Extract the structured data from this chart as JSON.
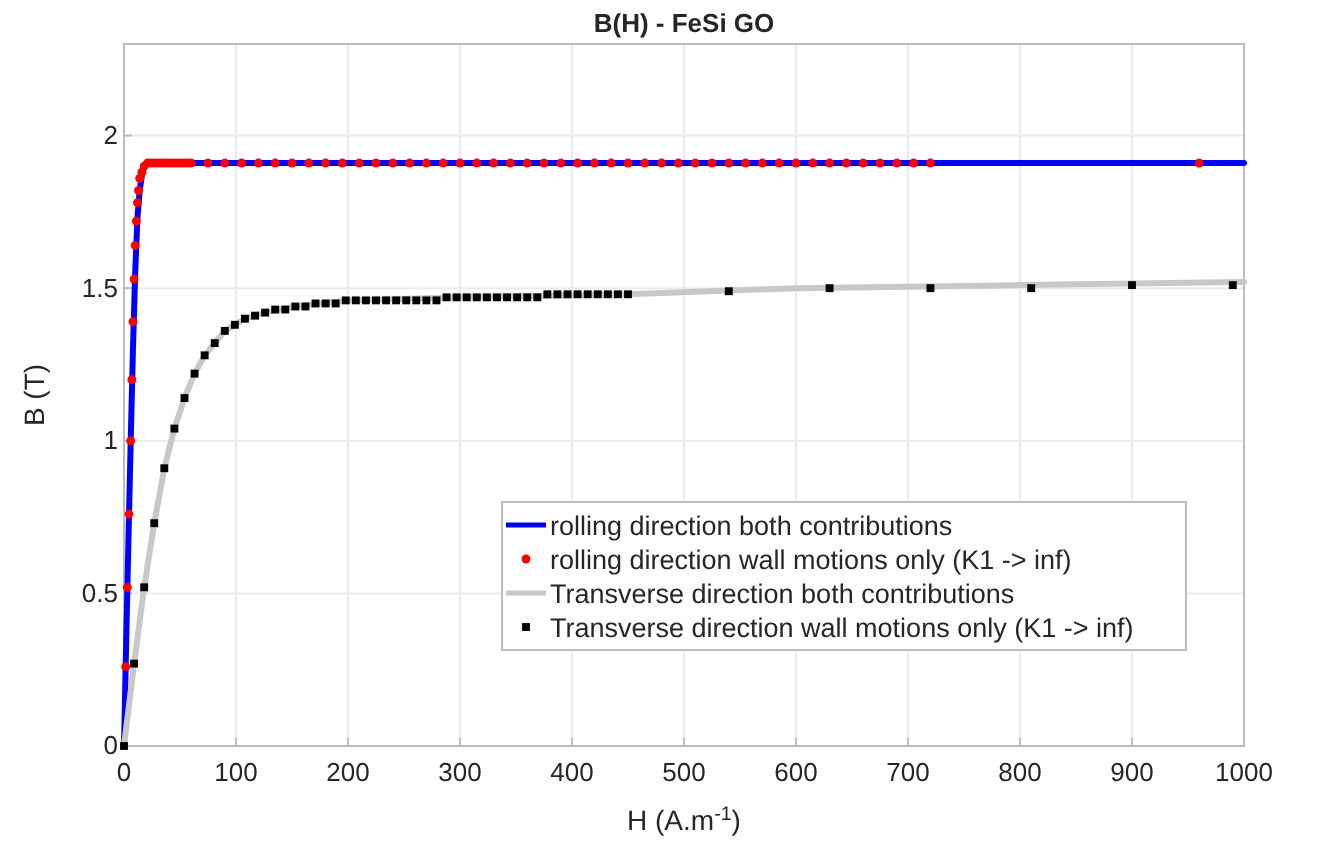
{
  "chart_data": {
    "type": "line",
    "title": "B(H) - FeSi GO",
    "xlabel": "H (A.m$^{-1}$)",
    "ylabel": "B (T)",
    "xlim": [
      0,
      1000
    ],
    "xticks": [
      0,
      100,
      200,
      300,
      400,
      500,
      600,
      700,
      800,
      900,
      1000
    ],
    "ylim": [
      0,
      2.3
    ],
    "yticks": [
      0,
      0.5,
      1,
      1.5,
      2
    ],
    "grid": true,
    "legend": "bottom right",
    "series": [
      {
        "name": "rolling direction both contributions",
        "color": "#0000ff",
        "marker": "none",
        "x": [
          0,
          2,
          4,
          6,
          8,
          10,
          12,
          14,
          16,
          18,
          21,
          30,
          1000
        ],
        "values": [
          0,
          0.35,
          0.68,
          1.0,
          1.3,
          1.55,
          1.73,
          1.82,
          1.87,
          1.9,
          1.91,
          1.91,
          1.91
        ]
      },
      {
        "name": "rolling direction wall motions only (K1 -> inf)",
        "type": "scatter",
        "color": "#ff0000",
        "marker": "circle",
        "x": [
          1.5,
          3,
          4.5,
          6,
          7,
          8,
          9,
          10,
          11,
          12,
          13,
          14,
          16,
          18,
          21,
          24,
          27,
          30,
          33,
          36,
          39,
          42,
          45,
          48,
          51,
          54,
          57,
          60,
          75,
          90,
          105,
          120,
          135,
          150,
          165,
          180,
          195,
          210,
          225,
          240,
          255,
          270,
          285,
          300,
          315,
          330,
          345,
          360,
          375,
          390,
          405,
          420,
          435,
          450,
          465,
          480,
          495,
          510,
          525,
          540,
          555,
          570,
          585,
          600,
          615,
          630,
          645,
          660,
          675,
          690,
          705,
          720,
          960
        ],
        "values": [
          0.26,
          0.52,
          0.76,
          1.0,
          1.2,
          1.39,
          1.53,
          1.64,
          1.72,
          1.78,
          1.82,
          1.86,
          1.88,
          1.9,
          1.91,
          1.91,
          1.91,
          1.91,
          1.91,
          1.91,
          1.91,
          1.91,
          1.91,
          1.91,
          1.91,
          1.91,
          1.91,
          1.91,
          1.91,
          1.91,
          1.91,
          1.91,
          1.91,
          1.91,
          1.91,
          1.91,
          1.91,
          1.91,
          1.91,
          1.91,
          1.91,
          1.91,
          1.91,
          1.91,
          1.91,
          1.91,
          1.91,
          1.91,
          1.91,
          1.91,
          1.91,
          1.91,
          1.91,
          1.91,
          1.91,
          1.91,
          1.91,
          1.91,
          1.91,
          1.91,
          1.91,
          1.91,
          1.91,
          1.91,
          1.91,
          1.91,
          1.91,
          1.91,
          1.91,
          1.91,
          1.91,
          1.91,
          1.91
        ]
      },
      {
        "name": "Transverse direction both contributions",
        "color": "#c8c8c8",
        "marker": "none",
        "x": [
          0,
          9,
          18,
          27,
          36,
          45,
          54,
          63,
          72,
          81,
          90,
          108,
          126,
          153,
          200,
          300,
          450,
          600,
          800,
          1000
        ],
        "values": [
          0,
          0.27,
          0.52,
          0.73,
          0.91,
          1.04,
          1.14,
          1.22,
          1.28,
          1.32,
          1.36,
          1.4,
          1.42,
          1.44,
          1.46,
          1.47,
          1.48,
          1.5,
          1.51,
          1.52
        ]
      },
      {
        "name": "Transverse direction wall motions only (K1 -> inf)",
        "type": "scatter",
        "color": "#000000",
        "marker": "square",
        "x": [
          0,
          9,
          18,
          27,
          36,
          45,
          54,
          63,
          72,
          81,
          90,
          99,
          108,
          117,
          126,
          135,
          144,
          153,
          162,
          171,
          180,
          189,
          198,
          207,
          216,
          225,
          234,
          243,
          252,
          261,
          270,
          279,
          288,
          297,
          306,
          315,
          324,
          333,
          342,
          351,
          360,
          369,
          378,
          387,
          396,
          405,
          414,
          423,
          432,
          441,
          450,
          540,
          630,
          720,
          810,
          900,
          990
        ],
        "values": [
          0,
          0.27,
          0.52,
          0.73,
          0.91,
          1.04,
          1.14,
          1.22,
          1.28,
          1.32,
          1.36,
          1.38,
          1.4,
          1.41,
          1.42,
          1.43,
          1.43,
          1.44,
          1.44,
          1.45,
          1.45,
          1.45,
          1.46,
          1.46,
          1.46,
          1.46,
          1.46,
          1.46,
          1.46,
          1.46,
          1.46,
          1.46,
          1.47,
          1.47,
          1.47,
          1.47,
          1.47,
          1.47,
          1.47,
          1.47,
          1.47,
          1.47,
          1.48,
          1.48,
          1.48,
          1.48,
          1.48,
          1.48,
          1.48,
          1.48,
          1.48,
          1.49,
          1.5,
          1.5,
          1.5,
          1.51,
          1.51
        ]
      }
    ]
  }
}
